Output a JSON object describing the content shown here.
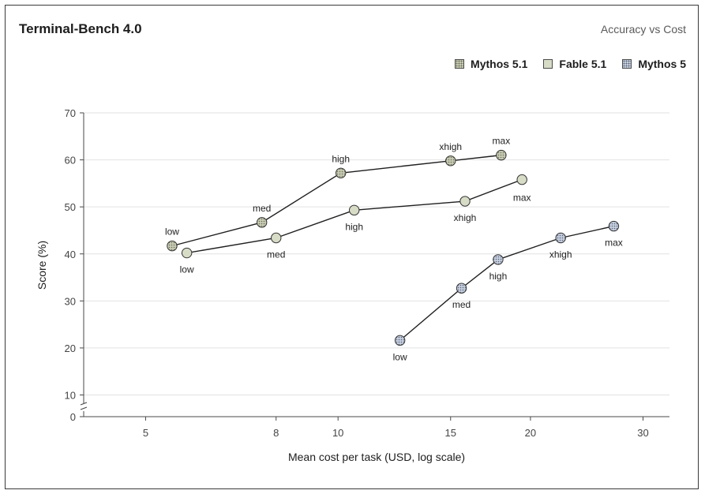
{
  "header": {
    "title": "Terminal-Bench 4.0",
    "subtitle": "Accuracy vs Cost"
  },
  "colors": {
    "mythos51_fill": "#c9cdb4",
    "fable51_fill": "#d7dcc6",
    "mythos5_fill": "#c6cfe0",
    "line": "#1f1f1f",
    "grid": "#e2e2e2"
  },
  "chart_data": {
    "type": "line",
    "title": "Terminal-Bench 4.0",
    "subtitle": "Accuracy vs Cost",
    "xlabel": "Mean cost per task (USD, log scale)",
    "ylabel": "Score (%)",
    "x_scale": "log",
    "xlim": [
      4,
      33
    ],
    "ylim": [
      0,
      70
    ],
    "y_axis_break": true,
    "x_ticks": [
      5,
      8,
      10,
      15,
      20,
      30
    ],
    "y_ticks": [
      0,
      10,
      20,
      30,
      40,
      50,
      60,
      70
    ],
    "grid": "horizontal",
    "legend_position": "top-right",
    "series": [
      {
        "name": "Mythos 5.1",
        "points": [
          {
            "x": 5.5,
            "y": 41.7,
            "label": "low"
          },
          {
            "x": 7.6,
            "y": 46.7,
            "label": "med"
          },
          {
            "x": 10.1,
            "y": 57.2,
            "label": "high"
          },
          {
            "x": 15.0,
            "y": 59.8,
            "label": "xhigh"
          },
          {
            "x": 18.0,
            "y": 61.0,
            "label": "max"
          }
        ]
      },
      {
        "name": "Fable 5.1",
        "points": [
          {
            "x": 5.8,
            "y": 40.2,
            "label": "low"
          },
          {
            "x": 8.0,
            "y": 43.4,
            "label": "med"
          },
          {
            "x": 10.6,
            "y": 49.3,
            "label": "high"
          },
          {
            "x": 15.8,
            "y": 51.2,
            "label": "xhigh"
          },
          {
            "x": 19.4,
            "y": 55.8,
            "label": "max"
          }
        ]
      },
      {
        "name": "Mythos 5",
        "points": [
          {
            "x": 12.5,
            "y": 21.6,
            "label": "low"
          },
          {
            "x": 15.6,
            "y": 32.7,
            "label": "med"
          },
          {
            "x": 17.8,
            "y": 38.8,
            "label": "high"
          },
          {
            "x": 22.3,
            "y": 43.4,
            "label": "xhigh"
          },
          {
            "x": 27.0,
            "y": 45.9,
            "label": "max"
          }
        ]
      }
    ]
  }
}
